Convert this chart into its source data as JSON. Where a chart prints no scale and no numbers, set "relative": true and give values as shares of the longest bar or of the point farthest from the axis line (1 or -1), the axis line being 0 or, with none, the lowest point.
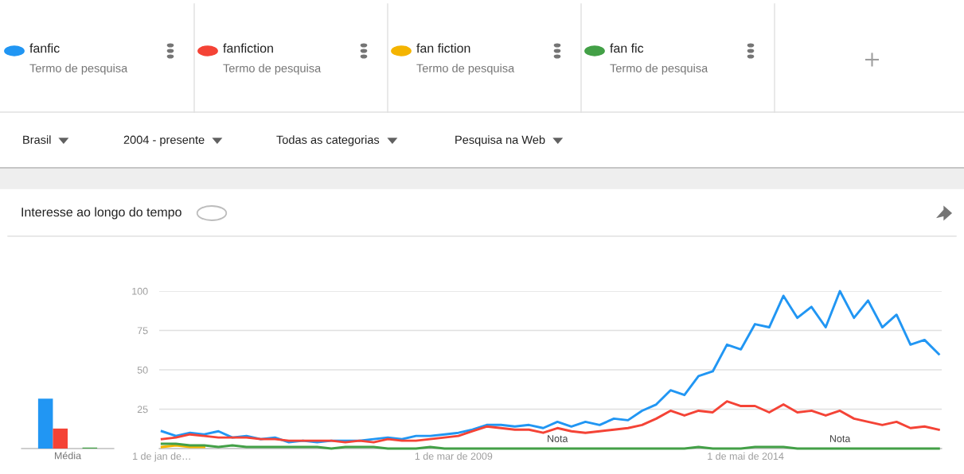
{
  "chart_data": [
    {
      "type": "bar",
      "relative": true,
      "categories": [
        "Média"
      ],
      "series": [
        {
          "color": "#2196f3",
          "values": [
            1
          ]
        },
        {
          "color": "#f44336",
          "values": [
            0.4
          ]
        },
        {
          "color": "#f4b400",
          "values": [
            null
          ]
        },
        {
          "color": "#43a047",
          "values": [
            0.02
          ]
        }
      ]
    },
    {
      "type": "line",
      "title": "Interesse ao longo do tempo",
      "legend": "top",
      "grid": "y",
      "x": [
        "2004-01",
        "2004-04",
        "2004-07",
        "2004-10",
        "2005-01",
        "2005-04",
        "2005-07",
        "2005-10",
        "2006-01",
        "2006-04",
        "2006-07",
        "2006-10",
        "2007-01",
        "2007-04",
        "2007-07",
        "2007-10",
        "2008-01",
        "2008-04",
        "2008-07",
        "2008-10",
        "2009-01",
        "2009-04",
        "2009-07",
        "2009-10",
        "2010-01",
        "2010-04",
        "2010-07",
        "2010-10",
        "2011-01",
        "2011-04",
        "2011-07",
        "2011-10",
        "2012-01",
        "2012-04",
        "2012-07",
        "2012-10",
        "2013-01",
        "2013-04",
        "2013-07",
        "2013-10",
        "2014-01",
        "2014-04",
        "2014-07",
        "2014-10",
        "2015-01",
        "2015-04",
        "2015-07",
        "2015-10",
        "2016-01",
        "2016-04",
        "2016-07",
        "2016-10",
        "2017-01",
        "2017-04",
        "2017-07",
        "2017-10"
      ],
      "series": [
        {
          "name": "fanfic",
          "color": "#2196f3",
          "values": [
            11,
            8,
            10,
            9,
            11,
            7,
            8,
            6,
            7,
            4,
            5,
            4,
            5,
            5,
            5,
            6,
            7,
            6,
            8,
            8,
            9,
            10,
            12,
            15,
            15,
            14,
            15,
            13,
            17,
            14,
            17,
            15,
            19,
            18,
            24,
            28,
            37,
            34,
            46,
            49,
            66,
            63,
            79,
            77,
            97,
            83,
            90,
            77,
            100,
            83,
            94,
            77,
            85,
            66,
            69,
            60
          ]
        },
        {
          "name": "fanfiction",
          "color": "#f44336",
          "values": [
            6,
            7,
            9,
            8,
            7,
            7,
            7,
            6,
            6,
            5,
            5,
            5,
            5,
            4,
            5,
            4,
            6,
            5,
            5,
            6,
            7,
            8,
            11,
            14,
            13,
            12,
            12,
            10,
            13,
            11,
            10,
            11,
            12,
            13,
            15,
            19,
            24,
            21,
            24,
            23,
            30,
            27,
            27,
            23,
            28,
            23,
            24,
            21,
            24,
            19,
            17,
            15,
            17,
            13,
            14,
            12
          ]
        },
        {
          "name": "fan fiction",
          "color": "#f4b400",
          "values": [
            1,
            2,
            1,
            1,
            null,
            null,
            null,
            null,
            null,
            null,
            null,
            null,
            null,
            null,
            null,
            null,
            null,
            null,
            null,
            null,
            null,
            null,
            null,
            null,
            null,
            null,
            null,
            null,
            null,
            null,
            null,
            null,
            null,
            null,
            null,
            null,
            null,
            null,
            null,
            null,
            null,
            null,
            null,
            null,
            null,
            null,
            null,
            null,
            null,
            null,
            null,
            null,
            null,
            null,
            null,
            null
          ]
        },
        {
          "name": "fan fic",
          "color": "#43a047",
          "values": [
            3,
            3,
            2,
            2,
            1,
            2,
            1,
            1,
            1,
            1,
            1,
            1,
            0,
            1,
            1,
            1,
            0,
            0,
            0,
            1,
            0,
            0,
            0,
            0,
            0,
            0,
            0,
            0,
            0,
            0,
            0,
            0,
            0,
            0,
            0,
            0,
            0,
            0,
            1,
            0,
            0,
            0,
            1,
            1,
            1,
            0,
            0,
            0,
            0,
            0,
            0,
            0,
            0,
            0,
            0,
            0
          ]
        }
      ],
      "xlim": [
        "2003-12-15",
        "2017-10-20"
      ],
      "ylim": [
        0,
        100
      ],
      "yticks": [
        25,
        50,
        75,
        100
      ],
      "xticks": [
        {
          "value": "2004-01-01",
          "label": "1 de jan de…"
        },
        {
          "value": "2009-03-01",
          "label": "1 de mar de 2009"
        },
        {
          "value": "2014-05-01",
          "label": "1 de mai de 2014"
        }
      ],
      "annotations": [
        "Termo de pesquisa",
        "Termo de pesquisa",
        "Termo de pesquisa",
        "Termo de pesquisa",
        "Brasil",
        "2004 - presente",
        "Todas as categorias",
        "Pesquisa na Web",
        {
          "text": "Nota",
          "x": "2011-01",
          "y": 0
        },
        {
          "text": "Nota",
          "x": "2016-01",
          "y": 0
        }
      ]
    }
  ]
}
